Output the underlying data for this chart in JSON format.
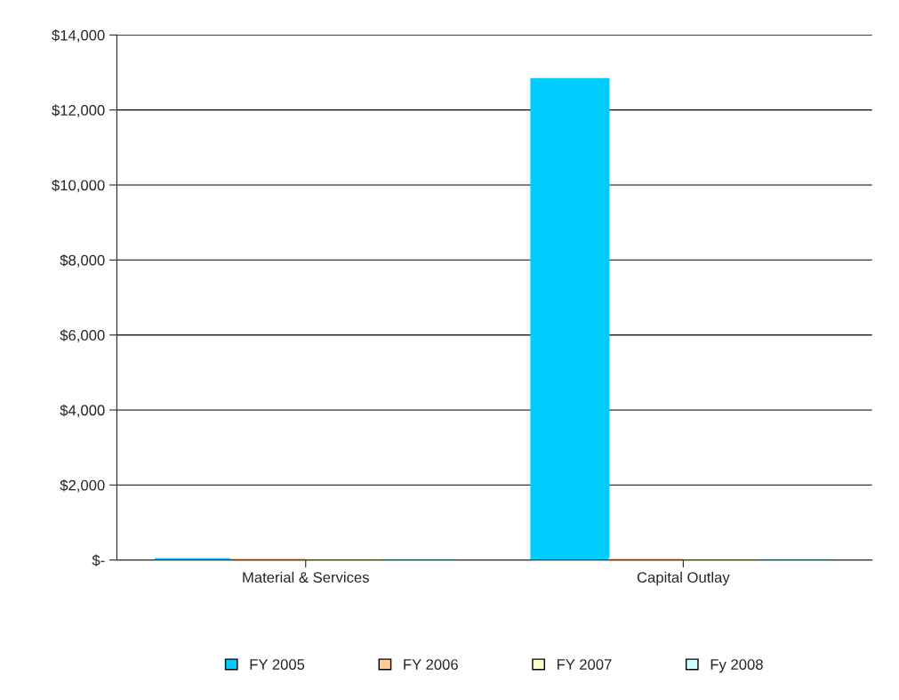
{
  "chart_data": {
    "type": "bar",
    "categories": [
      "Material & Services",
      "Capital Outlay"
    ],
    "series": [
      {
        "name": "FY 2005",
        "color": "#00ccff",
        "values": [
          0,
          12800
        ]
      },
      {
        "name": "FY 2006",
        "color": "#ffcc99",
        "values": [
          0,
          0
        ]
      },
      {
        "name": "FY 2007",
        "color": "#ffffcc",
        "values": [
          0,
          0
        ]
      },
      {
        "name": "Fy 2008",
        "color": "#ccffff",
        "values": [
          0,
          0
        ]
      }
    ],
    "ylim": [
      0,
      14000
    ],
    "yticks": [
      {
        "value": 0,
        "label": "$-"
      },
      {
        "value": 2000,
        "label": "$2,000"
      },
      {
        "value": 4000,
        "label": "$4,000"
      },
      {
        "value": 6000,
        "label": "$6,000"
      },
      {
        "value": 8000,
        "label": "$8,000"
      },
      {
        "value": 10000,
        "label": "$10,000"
      },
      {
        "value": 12000,
        "label": "$12,000"
      },
      {
        "value": 14000,
        "label": "$14,000"
      }
    ],
    "grid": "y",
    "legend": "bottom"
  }
}
